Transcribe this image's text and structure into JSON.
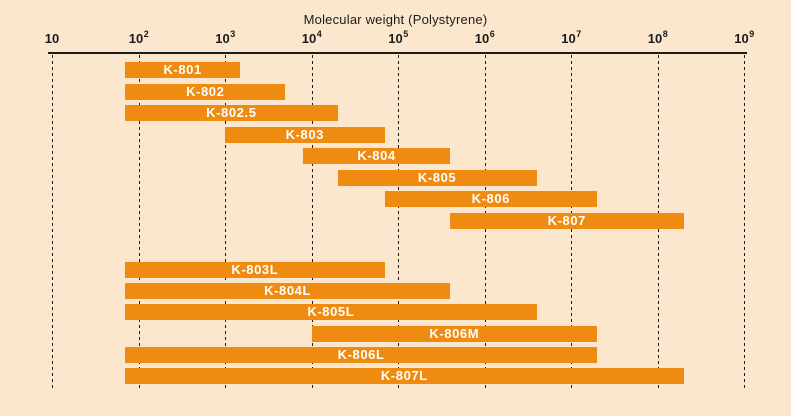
{
  "colors": {
    "background": "#fbe7cd",
    "bar": "#ef8b10",
    "axis": "#1a1a1a",
    "bar_label_text": "#ffffff",
    "gridline": "#1a1a1a"
  },
  "chart_data": {
    "type": "bar",
    "orientation": "horizontal-range",
    "x_scale": "log10",
    "title": "Molecular weight (Polystyrene)",
    "axis_position": "top",
    "xlim": [
      10,
      1000000000
    ],
    "grid": "vertical-dashed",
    "legend": "none",
    "ticks": [
      {
        "base": "10",
        "exp": ""
      },
      {
        "base": "10",
        "exp": "2"
      },
      {
        "base": "10",
        "exp": "3"
      },
      {
        "base": "10",
        "exp": "4"
      },
      {
        "base": "10",
        "exp": "5"
      },
      {
        "base": "10",
        "exp": "6"
      },
      {
        "base": "10",
        "exp": "7"
      },
      {
        "base": "10",
        "exp": "8"
      },
      {
        "base": "10",
        "exp": "9"
      }
    ],
    "series": [
      {
        "label": "K-801",
        "mw_min": 70,
        "mw_max": 1500,
        "group": 1
      },
      {
        "label": "K-802",
        "mw_min": 70,
        "mw_max": 5000,
        "group": 1
      },
      {
        "label": "K-802.5",
        "mw_min": 70,
        "mw_max": 20000,
        "group": 1
      },
      {
        "label": "K-803",
        "mw_min": 1000,
        "mw_max": 70000,
        "group": 1
      },
      {
        "label": "K-804",
        "mw_min": 8000,
        "mw_max": 400000,
        "group": 1
      },
      {
        "label": "K-805",
        "mw_min": 20000,
        "mw_max": 4000000,
        "group": 1
      },
      {
        "label": "K-806",
        "mw_min": 70000,
        "mw_max": 20000000,
        "group": 1
      },
      {
        "label": "K-807",
        "mw_min": 400000,
        "mw_max": 200000000,
        "group": 1
      },
      {
        "label": "K-803L",
        "mw_min": 70,
        "mw_max": 70000,
        "group": 2
      },
      {
        "label": "K-804L",
        "mw_min": 70,
        "mw_max": 400000,
        "group": 2
      },
      {
        "label": "K-805L",
        "mw_min": 70,
        "mw_max": 4000000,
        "group": 2
      },
      {
        "label": "K-806M",
        "mw_min": 10000,
        "mw_max": 20000000,
        "group": 2
      },
      {
        "label": "K-806L",
        "mw_min": 70,
        "mw_max": 20000000,
        "group": 2
      },
      {
        "label": "K-807L",
        "mw_min": 70,
        "mw_max": 200000000,
        "group": 2
      }
    ]
  }
}
